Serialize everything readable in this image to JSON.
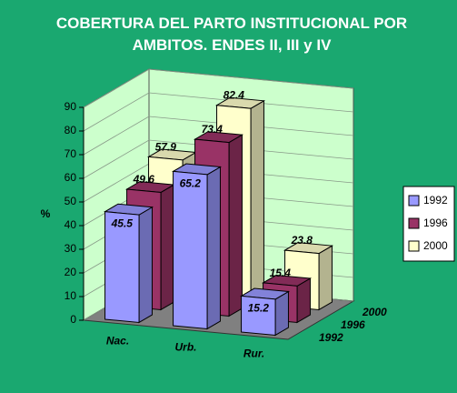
{
  "chart_data": {
    "type": "bar3d",
    "title": "COBERTURA DEL PARTO INSTITUCIONAL POR AMBITOS. ENDES II, III y IV",
    "ylabel": "%",
    "categories": [
      "Nac.",
      "Urb.",
      "Rur."
    ],
    "series": [
      {
        "name": "1992",
        "color": "#9999ff",
        "values": [
          45.5,
          65.2,
          15.2
        ]
      },
      {
        "name": "1996",
        "color": "#993366",
        "values": [
          49.6,
          73.4,
          15.4
        ]
      },
      {
        "name": "2000",
        "color": "#ffffcc",
        "values": [
          57.9,
          82.4,
          23.8
        ]
      }
    ],
    "ylim": [
      0,
      90
    ],
    "yticks": [
      0,
      10,
      20,
      30,
      40,
      50,
      60,
      70,
      80,
      90
    ],
    "grid": true,
    "legend": "right",
    "wall_color": "#ccffcc",
    "floor_color": "#808080"
  }
}
